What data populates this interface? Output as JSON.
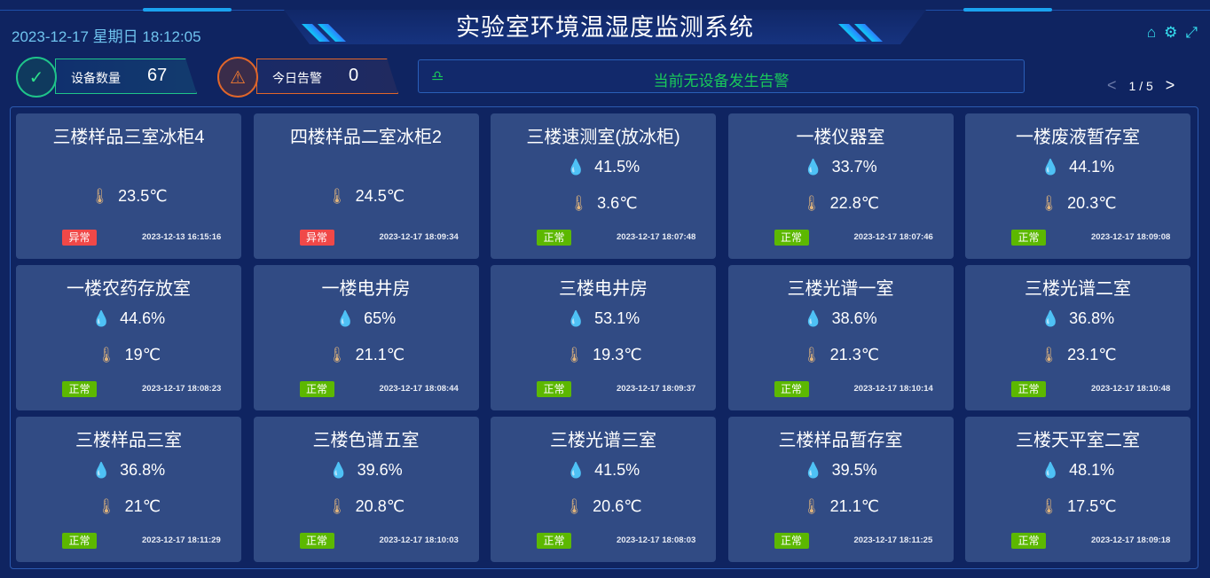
{
  "header": {
    "title": "实验室环境温湿度监测系统",
    "datetime": "2023-12-17 星期日 18:12:05"
  },
  "icons": [
    "home-icon",
    "gear-icon",
    "fullscreen-icon"
  ],
  "stats": {
    "device_label": "设备数量",
    "device_count": "67",
    "alarm_label": "今日告警",
    "alarm_count": "0"
  },
  "alert": {
    "text": "当前无设备发生告警"
  },
  "pager": {
    "text": "1 / 5"
  },
  "colors": {
    "normal": "#5cb800",
    "abnormal": "#f04848",
    "humidity_icon": "#22d4ec",
    "temp_icon": "#e0b47c"
  },
  "cards": [
    {
      "name": "三楼样品三室冰柜4",
      "humidity": null,
      "temp": "23.5℃",
      "status": "异常",
      "time": "2023-12-13 16:15:16"
    },
    {
      "name": "四楼样品二室冰柜2",
      "humidity": null,
      "temp": "24.5℃",
      "status": "异常",
      "time": "2023-12-17 18:09:34"
    },
    {
      "name": "三楼速测室(放冰柜)",
      "humidity": "41.5%",
      "temp": "3.6℃",
      "status": "正常",
      "time": "2023-12-17 18:07:48"
    },
    {
      "name": "一楼仪器室",
      "humidity": "33.7%",
      "temp": "22.8℃",
      "status": "正常",
      "time": "2023-12-17 18:07:46"
    },
    {
      "name": "一楼废液暂存室",
      "humidity": "44.1%",
      "temp": "20.3℃",
      "status": "正常",
      "time": "2023-12-17 18:09:08"
    },
    {
      "name": "一楼农药存放室",
      "humidity": "44.6%",
      "temp": "19℃",
      "status": "正常",
      "time": "2023-12-17 18:08:23"
    },
    {
      "name": "一楼电井房",
      "humidity": "65%",
      "temp": "21.1℃",
      "status": "正常",
      "time": "2023-12-17 18:08:44"
    },
    {
      "name": "三楼电井房",
      "humidity": "53.1%",
      "temp": "19.3℃",
      "status": "正常",
      "time": "2023-12-17 18:09:37"
    },
    {
      "name": "三楼光谱一室",
      "humidity": "38.6%",
      "temp": "21.3℃",
      "status": "正常",
      "time": "2023-12-17 18:10:14"
    },
    {
      "name": "三楼光谱二室",
      "humidity": "36.8%",
      "temp": "23.1℃",
      "status": "正常",
      "time": "2023-12-17 18:10:48"
    },
    {
      "name": "三楼样品三室",
      "humidity": "36.8%",
      "temp": "21℃",
      "status": "正常",
      "time": "2023-12-17 18:11:29"
    },
    {
      "name": "三楼色谱五室",
      "humidity": "39.6%",
      "temp": "20.8℃",
      "status": "正常",
      "time": "2023-12-17 18:10:03"
    },
    {
      "name": "三楼光谱三室",
      "humidity": "41.5%",
      "temp": "20.6℃",
      "status": "正常",
      "time": "2023-12-17 18:08:03"
    },
    {
      "name": "三楼样品暂存室",
      "humidity": "39.5%",
      "temp": "21.1℃",
      "status": "正常",
      "time": "2023-12-17 18:11:25"
    },
    {
      "name": "三楼天平室二室",
      "humidity": "48.1%",
      "temp": "17.5℃",
      "status": "正常",
      "time": "2023-12-17 18:09:18"
    }
  ]
}
